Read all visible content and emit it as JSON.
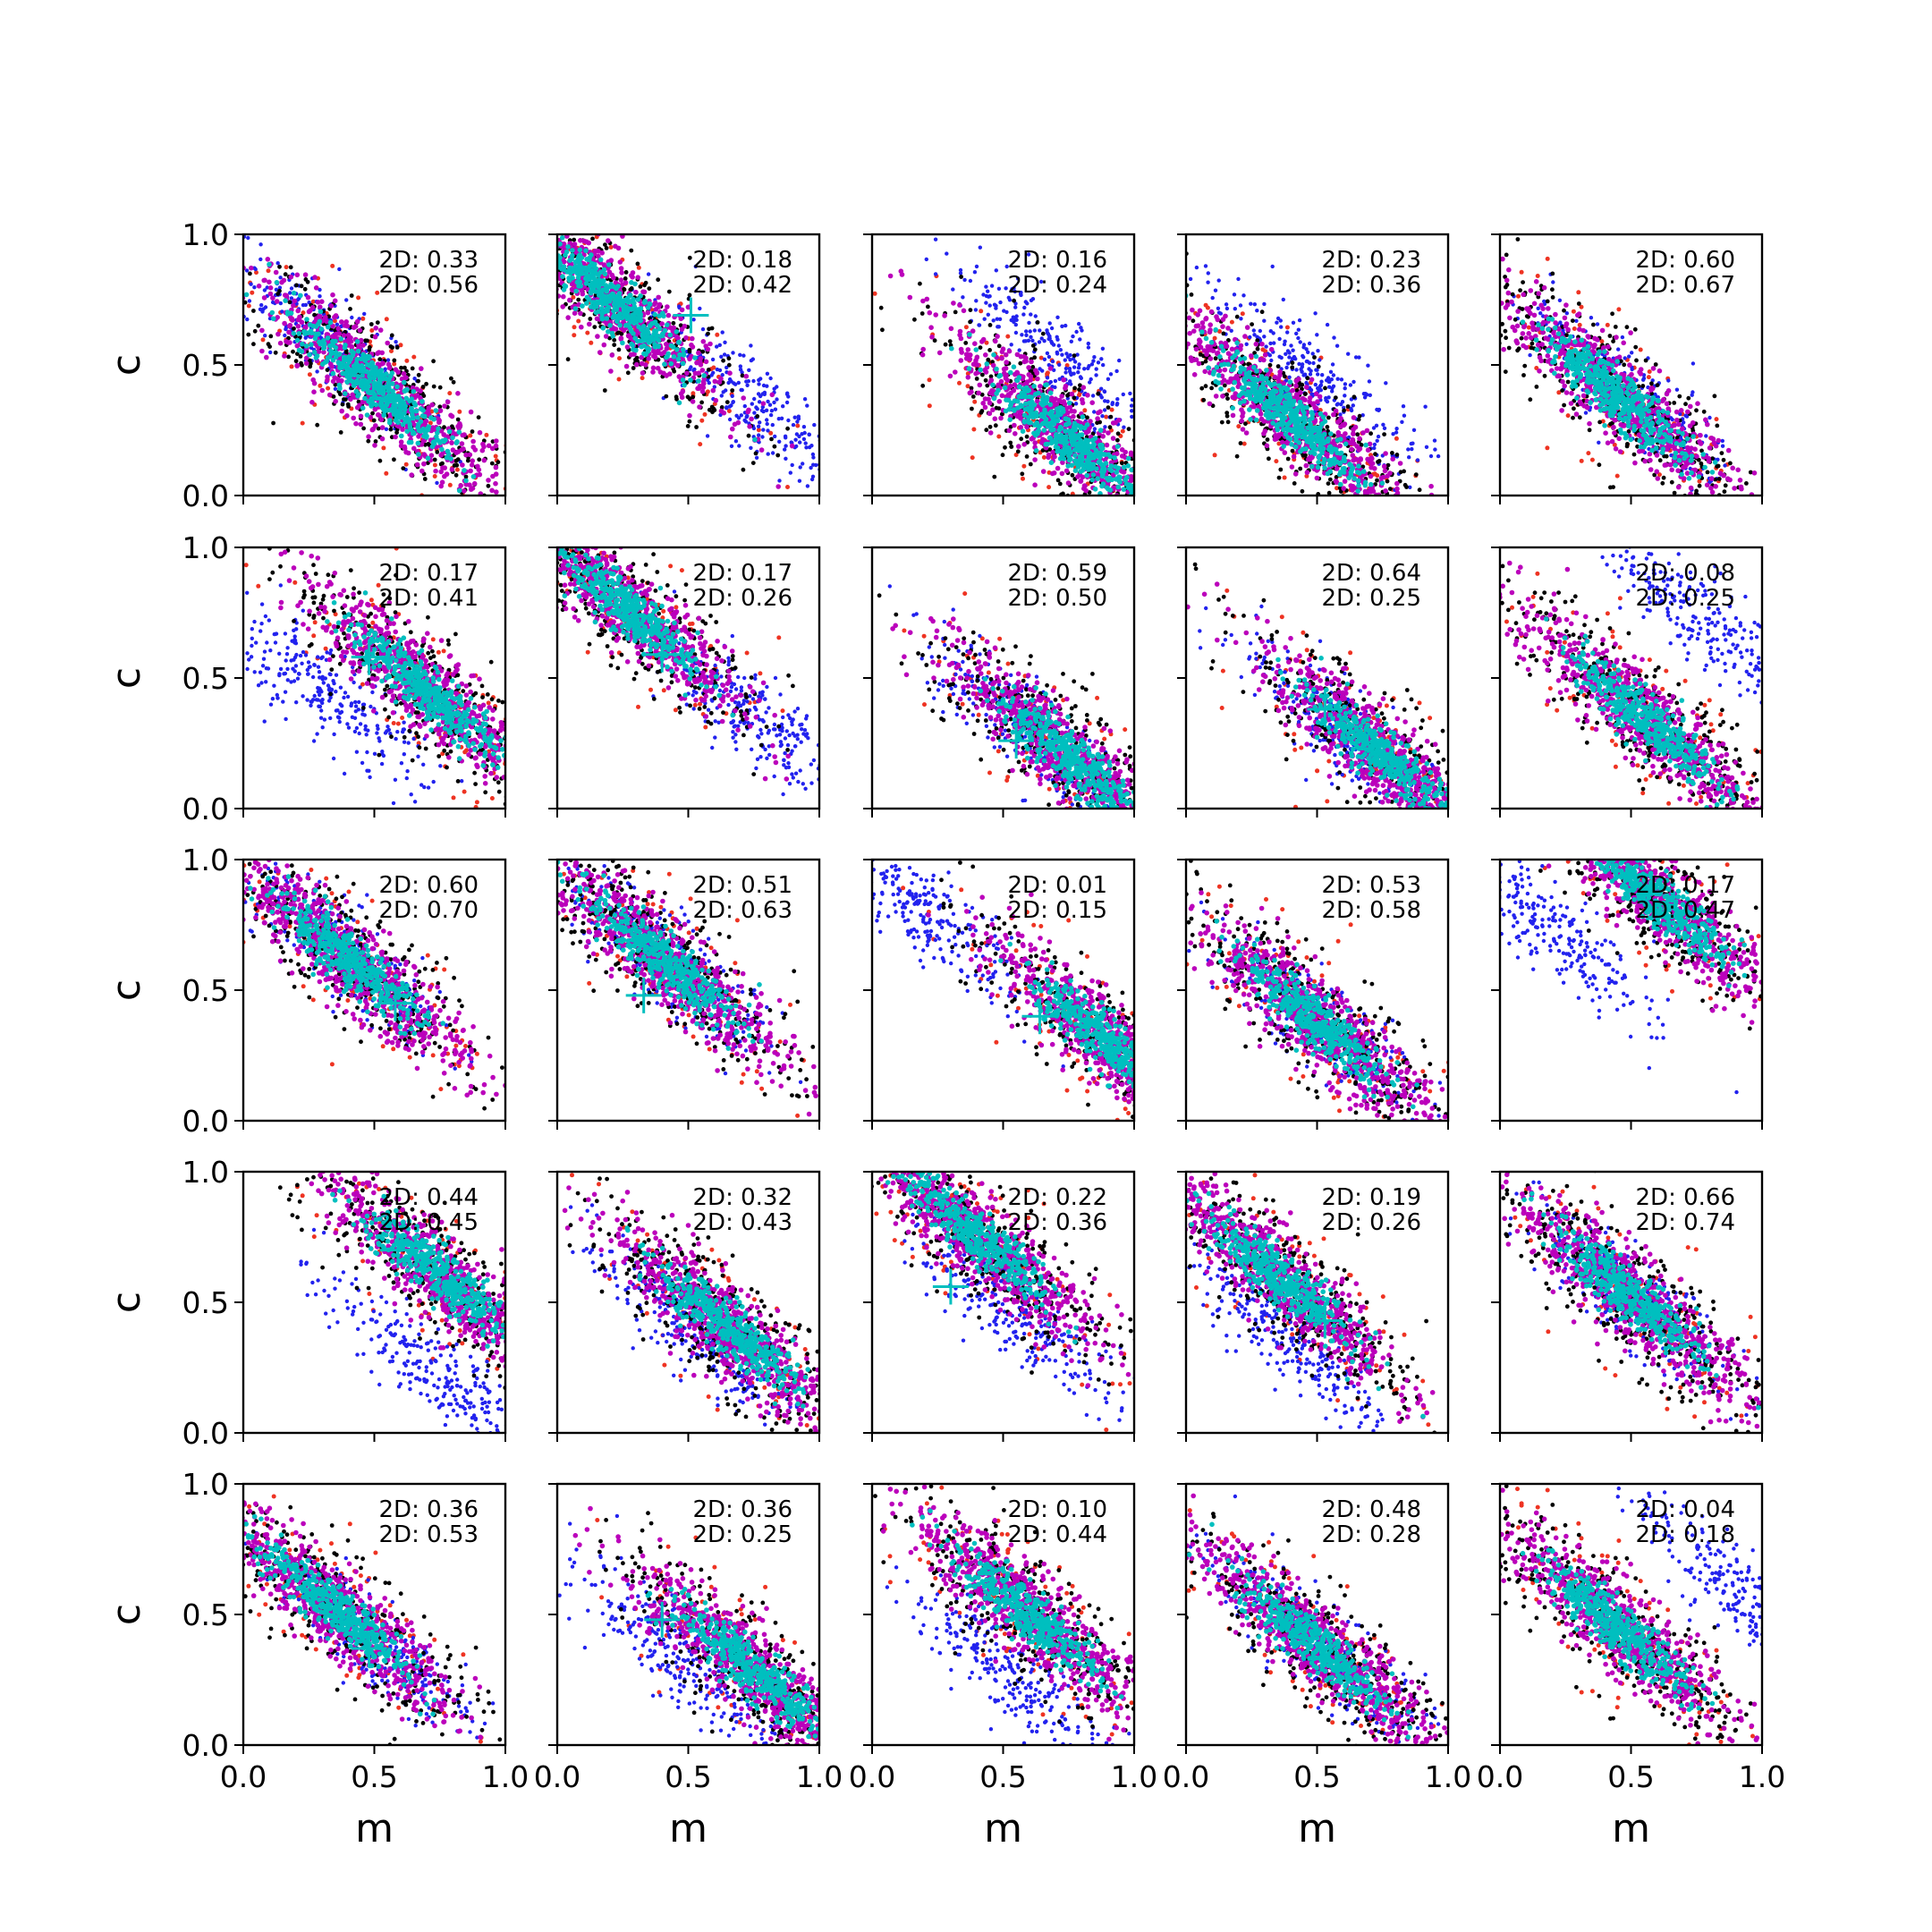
{
  "chart_data": {
    "type": "scatter",
    "layout": {
      "rows": 5,
      "cols": 5
    },
    "xlabel": "m",
    "ylabel": "c",
    "xlim": [
      0.0,
      1.0
    ],
    "ylim": [
      0.0,
      1.0
    ],
    "xticks": [
      "0.0",
      "0.5",
      "1.0"
    ],
    "yticks": [
      "0.0",
      "0.5",
      "1.0"
    ],
    "colors": {
      "outer": "#ee3322",
      "black": "#000000",
      "blue": "#2222ee",
      "magenta": "#bb00bb",
      "cyan": "#00bfbf",
      "marker": "#00bfbf"
    },
    "panels": [
      {
        "a": "2D: 0.33",
        "b": "2D: 0.56",
        "main": [
          0.5,
          0.42
        ],
        "alt": [
          0.3,
          0.62
        ],
        "mk": null
      },
      {
        "a": "2D: 0.18",
        "b": "2D: 0.42",
        "main": [
          0.2,
          0.75
        ],
        "alt": [
          0.75,
          0.35
        ],
        "mk": [
          0.51,
          0.69
        ]
      },
      {
        "a": "2D: 0.16",
        "b": "2D: 0.24",
        "main": [
          0.75,
          0.22
        ],
        "alt": [
          0.7,
          0.55
        ],
        "mk": null
      },
      {
        "a": "2D: 0.23",
        "b": "2D: 0.36",
        "main": [
          0.4,
          0.3
        ],
        "alt": [
          0.5,
          0.45
        ],
        "mk": null
      },
      {
        "a": "2D: 0.60",
        "b": "2D: 0.67",
        "main": [
          0.45,
          0.38
        ],
        "alt": [
          0.5,
          0.38
        ],
        "mk": null
      },
      {
        "a": "2D: 0.17",
        "b": "2D: 0.41",
        "main": [
          0.7,
          0.45
        ],
        "alt": [
          0.3,
          0.45
        ],
        "mk": [
          0.48,
          0.58
        ]
      },
      {
        "a": "2D: 0.17",
        "b": "2D: 0.26",
        "main": [
          0.25,
          0.78
        ],
        "alt": [
          0.75,
          0.35
        ],
        "mk": [
          0.4,
          0.59
        ]
      },
      {
        "a": "2D: 0.59",
        "b": "2D: 0.50",
        "main": [
          0.75,
          0.2
        ],
        "alt": [
          0.6,
          0.3
        ],
        "mk": [
          0.55,
          0.26
        ]
      },
      {
        "a": "2D: 0.64",
        "b": "2D: 0.25",
        "main": [
          0.75,
          0.2
        ],
        "alt": [
          0.6,
          0.3
        ],
        "mk": [
          0.53,
          0.38
        ]
      },
      {
        "a": "2D: 0.08",
        "b": "2D: 0.25",
        "main": [
          0.55,
          0.35
        ],
        "alt": [
          0.75,
          0.75
        ],
        "mk": null
      },
      {
        "a": "2D: 0.60",
        "b": "2D: 0.70",
        "main": [
          0.4,
          0.62
        ],
        "alt": [
          0.4,
          0.62
        ],
        "mk": [
          0.58,
          0.45
        ]
      },
      {
        "a": "2D: 0.51",
        "b": "2D: 0.63",
        "main": [
          0.4,
          0.62
        ],
        "alt": [
          0.4,
          0.62
        ],
        "mk": [
          0.33,
          0.48
        ]
      },
      {
        "a": "2D: 0.01",
        "b": "2D: 0.15",
        "main": [
          0.9,
          0.3
        ],
        "alt": [
          0.2,
          0.8
        ],
        "mk": [
          0.64,
          0.4
        ]
      },
      {
        "a": "2D: 0.53",
        "b": "2D: 0.58",
        "main": [
          0.5,
          0.38
        ],
        "alt": [
          0.5,
          0.38
        ],
        "mk": null
      },
      {
        "a": "2D: 0.17",
        "b": "2D: 0.47",
        "main": [
          0.6,
          0.85
        ],
        "alt": [
          0.2,
          0.72
        ],
        "mk": null
      },
      {
        "a": "2D: 0.44",
        "b": "2D: 0.45",
        "main": [
          0.75,
          0.6
        ],
        "alt": [
          0.7,
          0.25
        ],
        "mk": [
          0.59,
          0.7
        ]
      },
      {
        "a": "2D: 0.32",
        "b": "2D: 0.43",
        "main": [
          0.65,
          0.4
        ],
        "alt": [
          0.5,
          0.4
        ],
        "mk": null
      },
      {
        "a": "2D: 0.22",
        "b": "2D: 0.36",
        "main": [
          0.4,
          0.75
        ],
        "alt": [
          0.55,
          0.45
        ],
        "mk": [
          0.3,
          0.56
        ]
      },
      {
        "a": "2D: 0.19",
        "b": "2D: 0.26",
        "main": [
          0.35,
          0.6
        ],
        "alt": [
          0.4,
          0.35
        ],
        "mk": [
          0.53,
          0.43
        ]
      },
      {
        "a": "2D: 0.66",
        "b": "2D: 0.74",
        "main": [
          0.5,
          0.52
        ],
        "alt": [
          0.5,
          0.52
        ],
        "mk": null
      },
      {
        "a": "2D: 0.36",
        "b": "2D: 0.53",
        "main": [
          0.35,
          0.52
        ],
        "alt": [
          0.5,
          0.4
        ],
        "mk": [
          0.48,
          0.37
        ]
      },
      {
        "a": "2D: 0.36",
        "b": "2D: 0.25",
        "main": [
          0.75,
          0.28
        ],
        "alt": [
          0.45,
          0.35
        ],
        "mk": [
          0.4,
          0.48
        ]
      },
      {
        "a": "2D: 0.10",
        "b": "2D: 0.44",
        "main": [
          0.6,
          0.5
        ],
        "alt": [
          0.55,
          0.25
        ],
        "mk": null
      },
      {
        "a": "2D: 0.48",
        "b": "2D: 0.28",
        "main": [
          0.5,
          0.38
        ],
        "alt": [
          0.5,
          0.38
        ],
        "mk": null
      },
      {
        "a": "2D: 0.04",
        "b": "2D: 0.18",
        "main": [
          0.45,
          0.45
        ],
        "alt": [
          0.9,
          0.6
        ],
        "mk": null
      }
    ]
  }
}
